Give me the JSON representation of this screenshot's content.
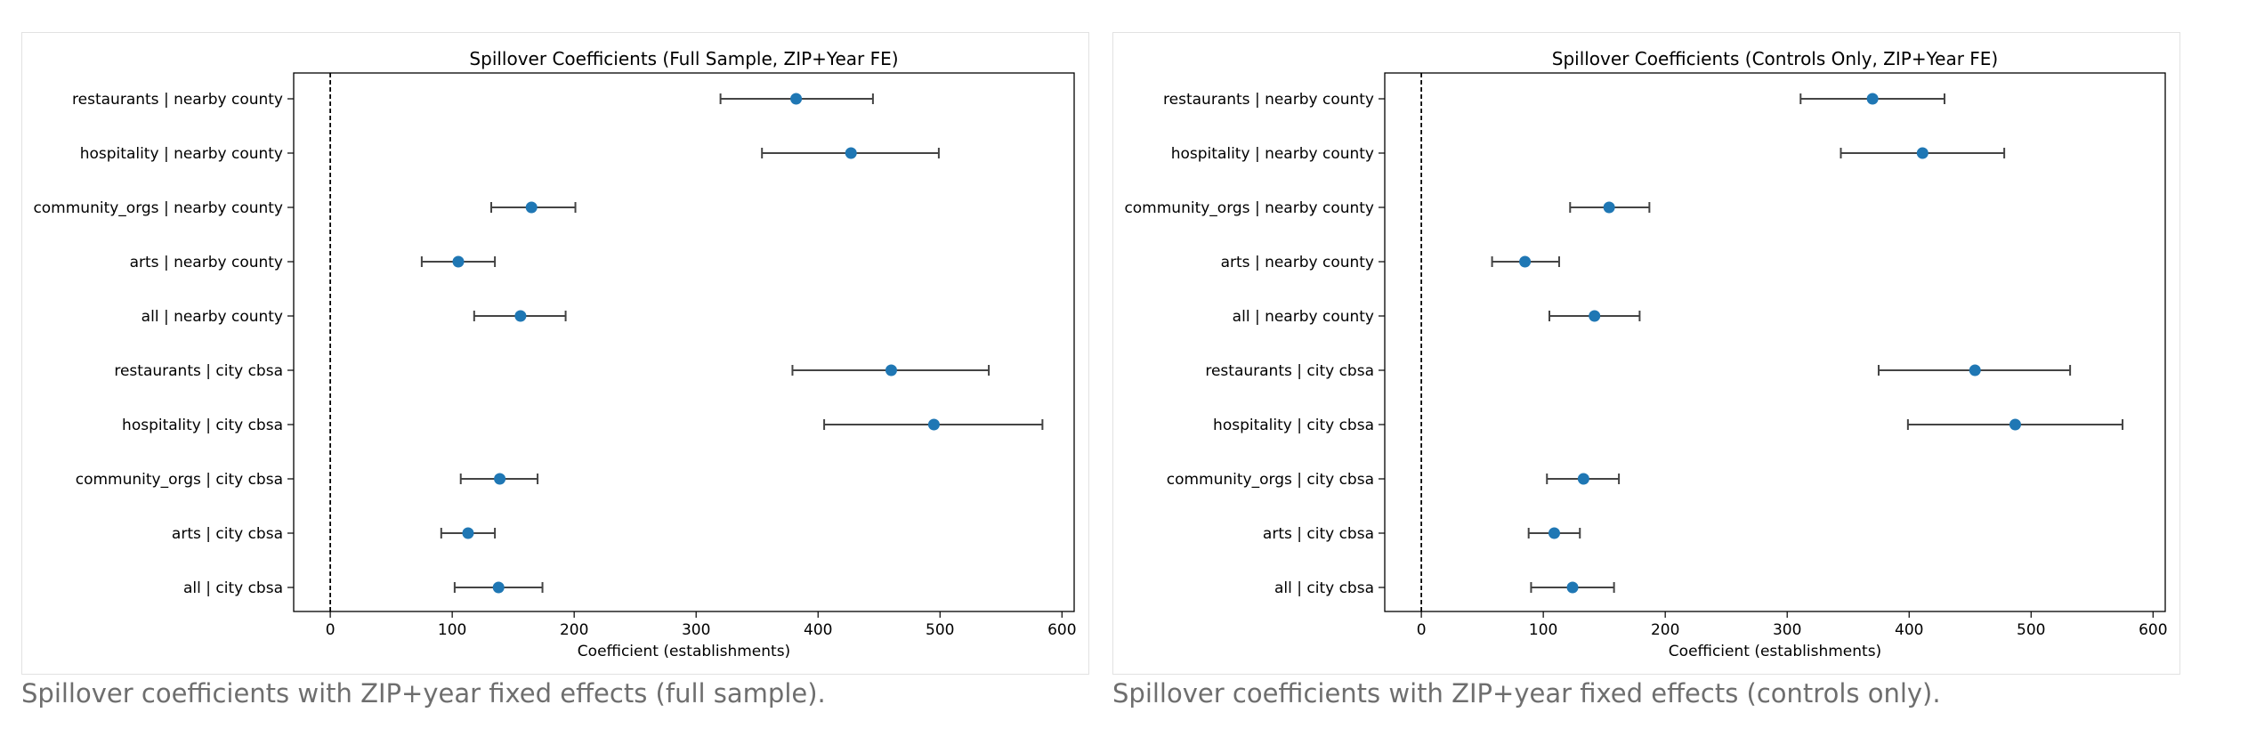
{
  "colors": {
    "point": "#1f77b4",
    "errorbar": "#444444",
    "zero_line": "#000000"
  },
  "chart_data": [
    {
      "type": "scatter",
      "title": "Spillover Coefficients (Full Sample, ZIP+Year FE)",
      "xlabel": "Coefficient (establishments)",
      "ylabel": "",
      "xlim": [
        -30,
        610
      ],
      "xticks": [
        0,
        100,
        200,
        300,
        400,
        500,
        600
      ],
      "grid": false,
      "reference_line_x": 0,
      "caption": "Spillover coefficients with ZIP+year fixed effects (full sample).",
      "categories": [
        "restaurants | nearby county",
        "hospitality | nearby county",
        "community_orgs | nearby county",
        "arts | nearby county",
        "all | nearby county",
        "restaurants | city cbsa",
        "hospitality | city cbsa",
        "community_orgs | city cbsa",
        "arts | city cbsa",
        "all | city cbsa"
      ],
      "estimates": [
        382,
        427,
        165,
        105,
        156,
        460,
        495,
        139,
        113,
        138
      ],
      "ci_low": [
        320,
        354,
        132,
        75,
        118,
        379,
        405,
        107,
        91,
        102
      ],
      "ci_high": [
        445,
        499,
        201,
        135,
        193,
        540,
        584,
        170,
        135,
        174
      ]
    },
    {
      "type": "scatter",
      "title": "Spillover Coefficients (Controls Only, ZIP+Year FE)",
      "xlabel": "Coefficient (establishments)",
      "ylabel": "",
      "xlim": [
        -30,
        610
      ],
      "xticks": [
        0,
        100,
        200,
        300,
        400,
        500,
        600
      ],
      "grid": false,
      "reference_line_x": 0,
      "caption": "Spillover coefficients with ZIP+year fixed effects (controls only).",
      "categories": [
        "restaurants | nearby county",
        "hospitality | nearby county",
        "community_orgs | nearby county",
        "arts | nearby county",
        "all | nearby county",
        "restaurants | city cbsa",
        "hospitality | city cbsa",
        "community_orgs | city cbsa",
        "arts | city cbsa",
        "all | city cbsa"
      ],
      "estimates": [
        370,
        411,
        154,
        85,
        142,
        454,
        487,
        133,
        109,
        124
      ],
      "ci_low": [
        311,
        344,
        122,
        58,
        105,
        375,
        399,
        103,
        88,
        90
      ],
      "ci_high": [
        429,
        478,
        187,
        113,
        179,
        532,
        575,
        162,
        130,
        158
      ]
    }
  ]
}
